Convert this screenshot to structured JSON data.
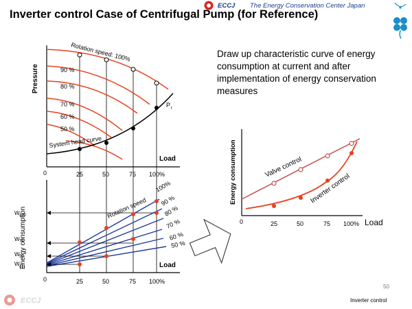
{
  "header": {
    "title": "Inverter control Case of Centrifugal Pump (for Reference)",
    "org_name": "The Energy Conservation Center Japan",
    "logo_text": "ECCJ",
    "brand_color": "#1a3b8c",
    "accent_color": "#d7261e"
  },
  "description": "Draw up characteristic curve of energy consumption at current and after implementation of energy conservation measures",
  "top_chart": {
    "ylabel": "Pressure",
    "xlabel": "Load",
    "origin": "0",
    "ticks": [
      "25",
      "50",
      "75",
      "100%"
    ],
    "rotation_label": "Rotation speed: 100%",
    "speed_labels": [
      "90 %",
      "80 %",
      "70 %",
      "60 %",
      "50 %"
    ],
    "system_curve_label": "System head curve",
    "point_label": "P",
    "point_subscript": "r"
  },
  "bottom_chart": {
    "ylabel": "Energy consumption",
    "xlabel": "Load",
    "origin": "0",
    "ticks": [
      "25",
      "50",
      "75",
      "100%"
    ],
    "rotation_label": "Rotation speed",
    "speed_labels": [
      "100%",
      "90 %",
      "80 %",
      "70 %",
      "60 %",
      "50 %"
    ],
    "w_labels": [
      {
        "main": "W",
        "sub": "100"
      },
      {
        "main": "W",
        "sub": "75"
      },
      {
        "main": "W",
        "sub": "50"
      },
      {
        "main": "W",
        "sub": "25"
      }
    ]
  },
  "right_chart": {
    "ylabel": "Energy consumption",
    "xlabel": "Load",
    "origin": "0",
    "ticks": [
      "25",
      "50",
      "75",
      "100%"
    ],
    "series": [
      {
        "name": "Valve control",
        "color": "#c0504d"
      },
      {
        "name": "Inverter control",
        "color": "#e8401c"
      }
    ]
  },
  "footer": {
    "page_number": "50",
    "section": "Inverter control",
    "logo_text": "ECCJ"
  },
  "icons": [
    "eccj-logo-icon",
    "clover-logo-icon",
    "arrow-right-icon"
  ]
}
